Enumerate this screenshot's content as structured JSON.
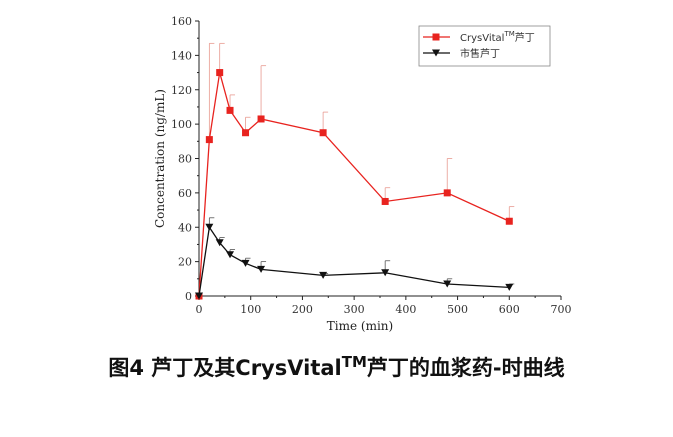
{
  "chart_data": {
    "type": "line",
    "title": "",
    "xlabel": "Time (min)",
    "ylabel": "Concentration (ng/mL)",
    "xlim": [
      0,
      700
    ],
    "ylim": [
      0,
      160
    ],
    "xticks": [
      0,
      100,
      200,
      300,
      400,
      500,
      600,
      700
    ],
    "yticks": [
      0,
      20,
      40,
      60,
      80,
      100,
      120,
      140,
      160
    ],
    "grid": false,
    "legend_placement": "top-right",
    "series": [
      {
        "name": "CrysVital",
        "name_sup": "TM",
        "name_suffix": "芦丁",
        "color": "#e8231f",
        "marker": "square",
        "x": [
          0,
          20,
          40,
          60,
          90,
          120,
          240,
          360,
          480,
          600
        ],
        "y": [
          0,
          91,
          130,
          108,
          95,
          103,
          95,
          55,
          60,
          43.5
        ],
        "error_upper": [
          0,
          147,
          147,
          117,
          104,
          134,
          107,
          63,
          80,
          52
        ]
      },
      {
        "name": "市售芦丁",
        "name_sup": "",
        "name_suffix": "",
        "color": "#111111",
        "marker": "triangle-down",
        "x": [
          0,
          20,
          40,
          60,
          90,
          120,
          240,
          360,
          480,
          600
        ],
        "y": [
          0,
          40,
          31,
          24,
          19,
          15.5,
          12,
          13.5,
          7,
          5
        ],
        "error_upper": [
          0,
          45.5,
          34,
          27,
          22,
          20,
          13,
          20.5,
          10,
          7
        ]
      }
    ]
  },
  "caption": {
    "prefix": "图4 芦丁及其CrysVital",
    "sup": "TM",
    "suffix": "芦丁的血浆药-时曲线"
  }
}
